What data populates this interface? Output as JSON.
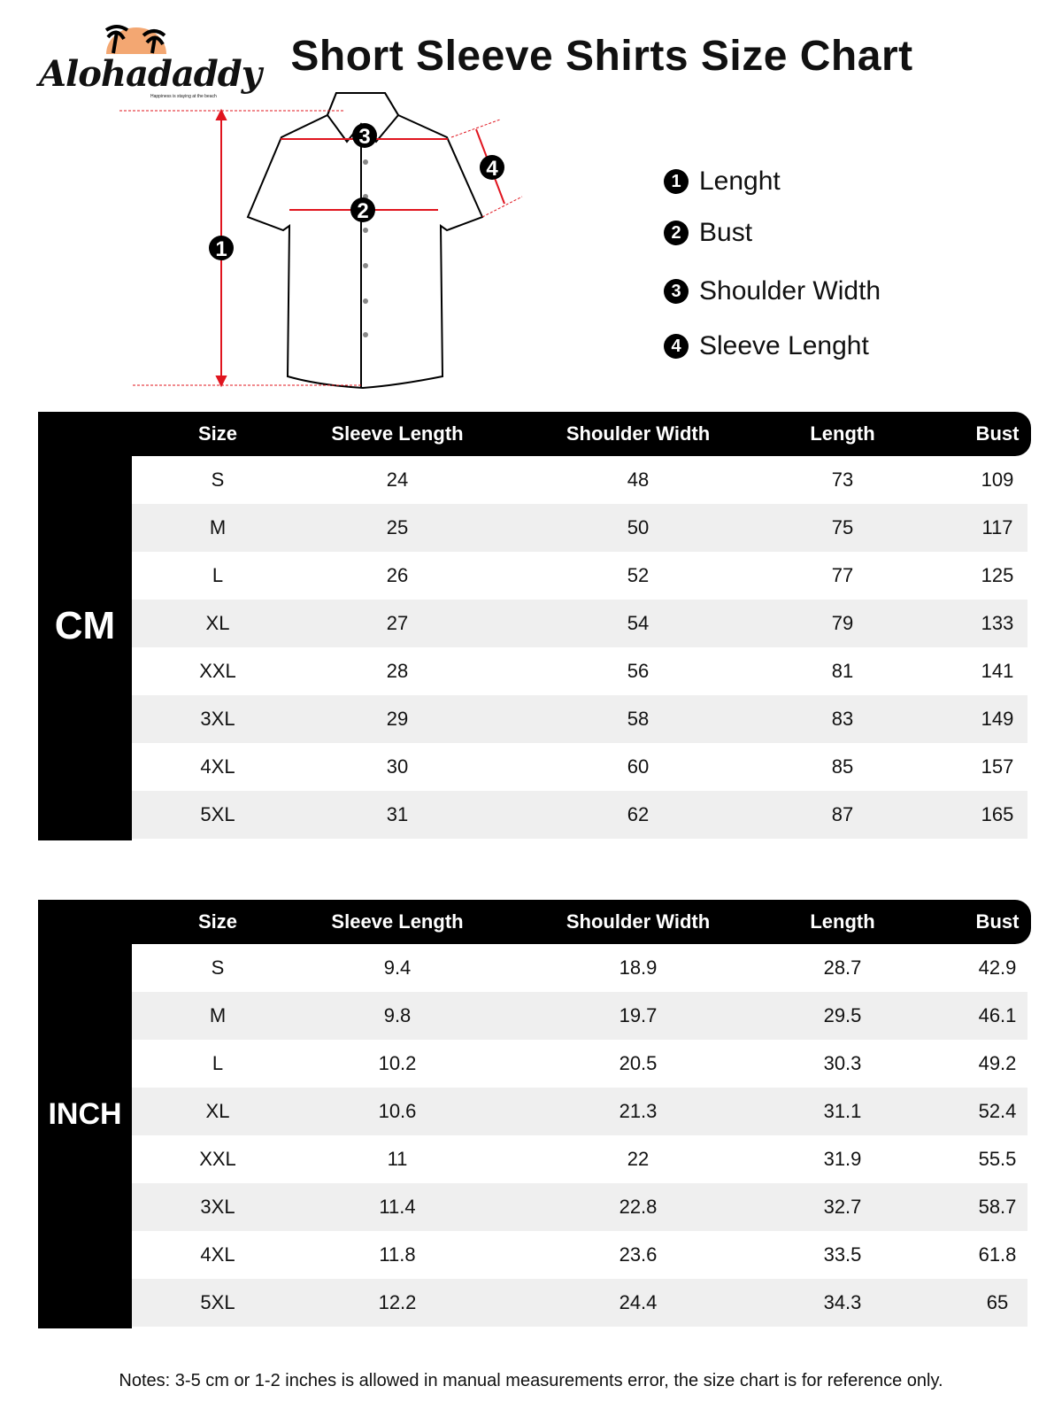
{
  "logo": {
    "brand": "Alohadaddy",
    "tagline": "Happiness is staying at the beach",
    "colors": {
      "sun": "#f3a772"
    }
  },
  "title": "Short Sleeve Shirts Size Chart",
  "diagram": {
    "markers": [
      "1",
      "2",
      "3",
      "4"
    ],
    "measure_color": "#e0141e"
  },
  "legend": [
    {
      "num": "1",
      "label": "Lenght"
    },
    {
      "num": "2",
      "label": "Bust"
    },
    {
      "num": "3",
      "label": "Shoulder Width"
    },
    {
      "num": "4",
      "label": "Sleeve Lenght"
    }
  ],
  "columns": [
    "Size",
    "Sleeve Length",
    "Shoulder Width",
    "Length",
    "Bust"
  ],
  "cm": {
    "unit": "CM",
    "rows": [
      [
        "S",
        "24",
        "48",
        "73",
        "109"
      ],
      [
        "M",
        "25",
        "50",
        "75",
        "117"
      ],
      [
        "L",
        "26",
        "52",
        "77",
        "125"
      ],
      [
        "XL",
        "27",
        "54",
        "79",
        "133"
      ],
      [
        "XXL",
        "28",
        "56",
        "81",
        "141"
      ],
      [
        "3XL",
        "29",
        "58",
        "83",
        "149"
      ],
      [
        "4XL",
        "30",
        "60",
        "85",
        "157"
      ],
      [
        "5XL",
        "31",
        "62",
        "87",
        "165"
      ]
    ]
  },
  "inch": {
    "unit": "INCH",
    "rows": [
      [
        "S",
        "9.4",
        "18.9",
        "28.7",
        "42.9"
      ],
      [
        "M",
        "9.8",
        "19.7",
        "29.5",
        "46.1"
      ],
      [
        "L",
        "10.2",
        "20.5",
        "30.3",
        "49.2"
      ],
      [
        "XL",
        "10.6",
        "21.3",
        "31.1",
        "52.4"
      ],
      [
        "XXL",
        "11",
        "22",
        "31.9",
        "55.5"
      ],
      [
        "3XL",
        "11.4",
        "22.8",
        "32.7",
        "58.7"
      ],
      [
        "4XL",
        "11.8",
        "23.6",
        "33.5",
        "61.8"
      ],
      [
        "5XL",
        "12.2",
        "24.4",
        "34.3",
        "65"
      ]
    ]
  },
  "notes": "Notes: 3-5 cm or 1-2 inches is allowed in manual measurements error, the size chart is for reference only."
}
